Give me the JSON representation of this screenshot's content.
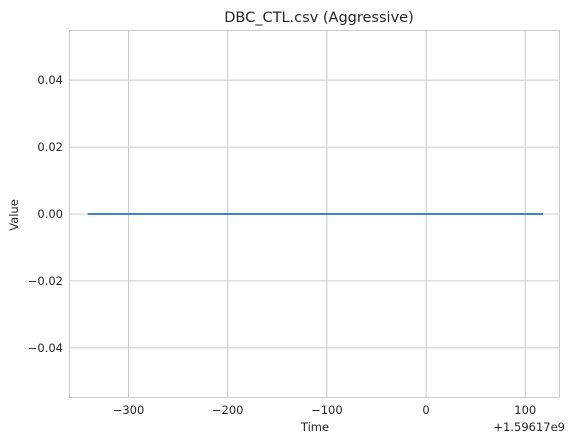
{
  "chart_data": {
    "type": "line",
    "title": "DBC_CTL.csv (Aggressive)",
    "xlabel": "Time",
    "ylabel": "Value",
    "x_offset_label": "+1.59617e9",
    "xlim": [
      -360,
      135
    ],
    "ylim": [
      -0.055,
      0.055
    ],
    "x_ticks": [
      -300,
      -200,
      -100,
      0,
      100
    ],
    "x_tick_labels": [
      "−300",
      "−200",
      "−100",
      "0",
      "100"
    ],
    "y_ticks": [
      0.04,
      0.02,
      0.0,
      -0.02,
      -0.04
    ],
    "y_tick_labels": [
      "0.04",
      "0.02",
      "0.00",
      "−0.02",
      "−0.04"
    ],
    "grid": true,
    "series": [
      {
        "color": "#1f77b4",
        "x": [
          -341,
          118
        ],
        "y": [
          0.0,
          0.0
        ]
      }
    ]
  }
}
